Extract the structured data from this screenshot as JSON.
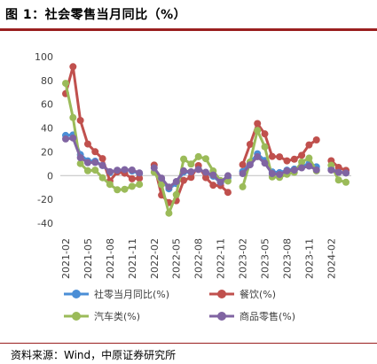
{
  "figure": {
    "title": "图 1：社会零售当月同比（%）",
    "source": "资料来源：Wind，中原证券研究所",
    "rule_color": "#9a1f1f"
  },
  "chart_data": {
    "type": "line",
    "title": "",
    "xlabel": "",
    "ylabel": "",
    "ylim": [
      -40,
      100
    ],
    "yticks": [
      -40,
      -20,
      0,
      20,
      40,
      60,
      80,
      100
    ],
    "grid": false,
    "legend_position": "bottom",
    "categories": [
      "2021-02",
      "2021-03",
      "2021-04",
      "2021-05",
      "2021-06",
      "2021-07",
      "2021-08",
      "2021-09",
      "2021-10",
      "2021-11",
      "2021-12",
      "2022-01",
      "2022-02",
      "2022-03",
      "2022-04",
      "2022-05",
      "2022-06",
      "2022-07",
      "2022-08",
      "2022-09",
      "2022-10",
      "2022-11",
      "2022-12",
      "2023-01",
      "2023-02",
      "2023-03",
      "2023-04",
      "2023-05",
      "2023-06",
      "2023-07",
      "2023-08",
      "2023-09",
      "2023-10",
      "2023-11",
      "2023-12",
      "2024-01",
      "2024-02",
      "2024-03",
      "2024-04"
    ],
    "tick_labels": [
      "2021-02",
      "2021-05",
      "2021-08",
      "2021-11",
      "2022-02",
      "2022-05",
      "2022-08",
      "2022-11",
      "2023-02",
      "2023-05",
      "2023-08",
      "2023-11",
      "2024-02"
    ],
    "series": [
      {
        "name": "社零当月同比(%)",
        "color": "#4a8ed6",
        "values": [
          33.8,
          34.2,
          17.7,
          12.4,
          12.1,
          8.5,
          2.5,
          4.4,
          4.9,
          3.9,
          1.7,
          null,
          null,
          -3.5,
          -11.1,
          -6.7,
          3.1,
          2.7,
          5.4,
          2.5,
          -0.5,
          -5.9,
          -1.8,
          null,
          3.5,
          10.6,
          18.4,
          12.7,
          3.1,
          2.5,
          4.6,
          5.5,
          7.6,
          10.1,
          7.4,
          null,
          5.5,
          3.1,
          2.3
        ]
      },
      {
        "name": "餐饮(%)",
        "color": "#c0504d",
        "values": [
          68.9,
          91.6,
          46.4,
          26.6,
          20.1,
          14.3,
          -4.5,
          3.1,
          2.0,
          -2.7,
          -2.2,
          null,
          8.9,
          -16.4,
          -22.7,
          -21.1,
          -4.0,
          -1.5,
          8.4,
          -1.7,
          -8.1,
          -8.4,
          -14.1,
          null,
          9.2,
          26.3,
          43.8,
          35.1,
          16.1,
          15.8,
          12.4,
          13.8,
          17.1,
          25.8,
          30.0,
          null,
          12.5,
          6.9,
          4.4
        ]
      },
      {
        "name": "汽车类(%)",
        "color": "#9bbb59",
        "values": [
          77.6,
          48.8,
          10.1,
          4.1,
          4.6,
          -1.8,
          -7.4,
          -11.9,
          -11.5,
          -9.0,
          -7.4,
          null,
          3.0,
          -7.5,
          -31.6,
          -16.0,
          13.9,
          9.7,
          15.9,
          14.2,
          3.9,
          -4.2,
          -4.6,
          null,
          -9.4,
          11.5,
          38.0,
          24.2,
          -1.1,
          -1.5,
          1.1,
          2.8,
          11.4,
          14.7,
          4.0,
          null,
          8.7,
          -3.7,
          -5.6
        ]
      },
      {
        "name": "商品零售(%)",
        "color": "#8064a2",
        "values": [
          30.8,
          31.6,
          15.1,
          10.9,
          11.1,
          8.6,
          3.3,
          4.5,
          5.0,
          4.7,
          2.3,
          null,
          6.5,
          -2.1,
          -9.7,
          -5.0,
          4.0,
          3.2,
          5.1,
          2.8,
          0.5,
          -5.6,
          -0.1,
          null,
          1.7,
          9.1,
          15.9,
          10.5,
          1.7,
          1.0,
          4.0,
          4.6,
          6.5,
          8.0,
          4.8,
          null,
          4.6,
          2.7,
          2.2
        ]
      }
    ]
  }
}
